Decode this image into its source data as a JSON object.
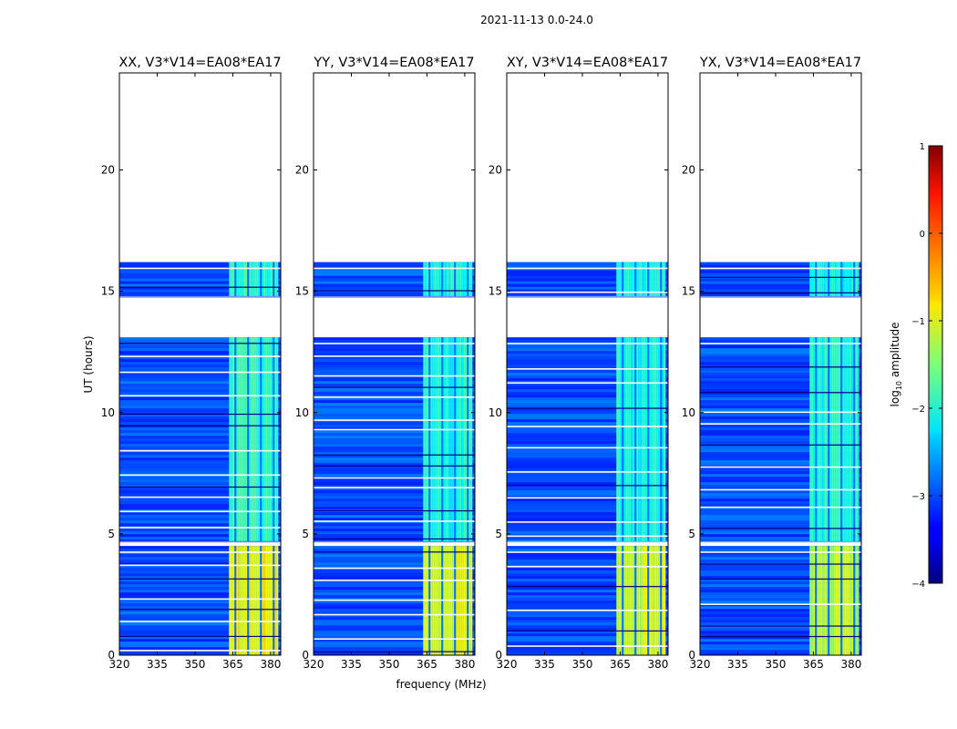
{
  "figure": {
    "suptitle": "2021-11-13 0.0-24.0",
    "xlabel": "frequency (MHz)",
    "ylabel": "UT (hours)"
  },
  "colors": {
    "dark_blue": "#00007f",
    "blue": "#0a36ff",
    "cyan": "#16e0f6",
    "green": "#6cff8c",
    "yellow": "#f4f80c",
    "orange": "#ff8c00",
    "red": "#d40000",
    "white": "#ffffff"
  },
  "chart_data": {
    "type": "heatmap",
    "panels": [
      {
        "title": "XX, V3*V14=EA08*EA17",
        "band_level_low": -0.9,
        "band_level_mid": -1.9
      },
      {
        "title": "YY, V3*V14=EA08*EA17",
        "band_level_low": -1.0,
        "band_level_mid": -2.0
      },
      {
        "title": "XY, V3*V14=EA08*EA17",
        "band_level_low": -1.1,
        "band_level_mid": -2.0
      },
      {
        "title": "YX, V3*V14=EA08*EA17",
        "band_level_low": -1.2,
        "band_level_mid": -2.0
      }
    ],
    "x": {
      "label": "frequency (MHz)",
      "range": [
        320,
        384
      ],
      "ticks": [
        320,
        335,
        350,
        365,
        380
      ],
      "tick_labels": [
        "320",
        "335",
        "350",
        "365",
        "380"
      ]
    },
    "y": {
      "label": "UT (hours)",
      "range": [
        0,
        24
      ],
      "ticks": [
        0,
        5,
        10,
        15,
        20
      ],
      "tick_labels": [
        "0",
        "5",
        "10",
        "15",
        "20"
      ]
    },
    "data_segments_hours": [
      [
        0.0,
        4.5
      ],
      [
        4.7,
        13.1
      ],
      [
        14.8,
        16.2
      ]
    ],
    "no_data_hours": [
      [
        4.5,
        4.7
      ],
      [
        13.1,
        14.8
      ],
      [
        16.2,
        24.0
      ]
    ],
    "background_level": -3.0,
    "band_rfi_mhz": [
      363.5,
      383.0
    ],
    "colorbar": {
      "label_main": "log",
      "label_sub": "10",
      "label_rest": " amplitude",
      "range": [
        -4,
        1
      ],
      "ticks": [
        1,
        0,
        -1,
        -2,
        -3,
        -4
      ],
      "tick_labels": [
        "1",
        "0",
        "−1",
        "−2",
        "−3",
        "−4"
      ]
    }
  }
}
